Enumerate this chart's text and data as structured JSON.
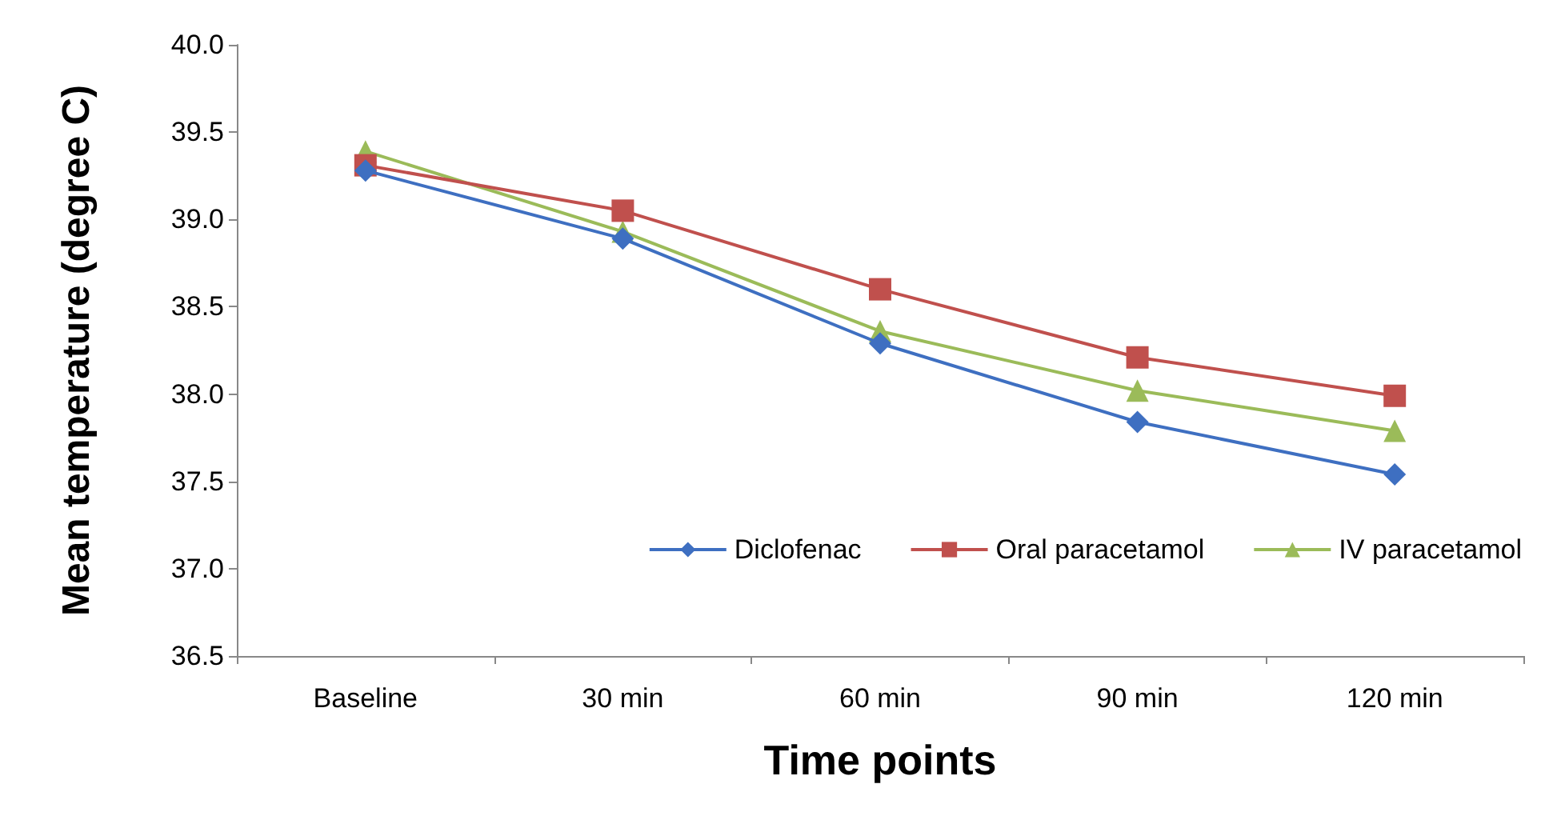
{
  "chart_data": {
    "type": "line",
    "xlabel": "Time points",
    "ylabel": "Mean temperature (degree C)",
    "categories": [
      "Baseline",
      "30 min",
      "60 min",
      "90 min",
      "120 min"
    ],
    "series": [
      {
        "name": "Diclofenac",
        "color": "#3e6fc1",
        "marker": "diamond",
        "values": [
          39.28,
          38.89,
          38.29,
          37.84,
          37.54
        ]
      },
      {
        "name": "Oral paracetamol",
        "color": "#c0504d",
        "marker": "square",
        "values": [
          39.31,
          39.05,
          38.6,
          38.21,
          37.99
        ]
      },
      {
        "name": "IV paracetamol",
        "color": "#9bbb59",
        "marker": "triangle",
        "values": [
          39.39,
          38.93,
          38.36,
          38.02,
          37.79
        ]
      }
    ],
    "ylim": [
      36.5,
      40
    ],
    "yticks": [
      36.5,
      {
        "value": 37,
        "label": "37.0"
      },
      37.5,
      {
        "value": 38,
        "label": "38.0"
      },
      38.5,
      {
        "value": 39,
        "label": "39.0"
      },
      39.5,
      {
        "value": 40,
        "label": "40.0"
      }
    ],
    "grid": false,
    "legend": "bottom right"
  }
}
